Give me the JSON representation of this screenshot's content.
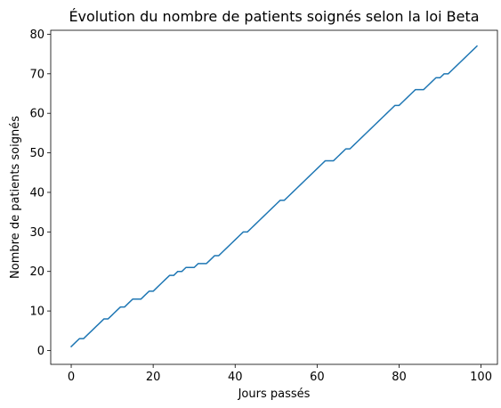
{
  "chart_data": {
    "type": "line",
    "title": "Évolution du nombre de patients soignés selon la loi Beta",
    "xlabel": "Jours passés",
    "ylabel": "Nombre de patients soignés",
    "xlim": [
      -5,
      104
    ],
    "ylim": [
      -3.5,
      81
    ],
    "xticks": [
      0,
      20,
      40,
      60,
      80,
      100
    ],
    "yticks": [
      0,
      10,
      20,
      30,
      40,
      50,
      60,
      70,
      80
    ],
    "grid": false,
    "series": [
      {
        "color": "#1f77b4",
        "x": [
          0,
          1,
          2,
          3,
          4,
          5,
          6,
          7,
          8,
          9,
          10,
          11,
          12,
          13,
          14,
          15,
          16,
          17,
          18,
          19,
          20,
          21,
          22,
          23,
          24,
          25,
          26,
          27,
          28,
          29,
          30,
          31,
          32,
          33,
          34,
          35,
          36,
          37,
          38,
          39,
          40,
          41,
          42,
          43,
          44,
          45,
          46,
          47,
          48,
          49,
          50,
          51,
          52,
          53,
          54,
          55,
          56,
          57,
          58,
          59,
          60,
          61,
          62,
          63,
          64,
          65,
          66,
          67,
          68,
          69,
          70,
          71,
          72,
          73,
          74,
          75,
          76,
          77,
          78,
          79,
          80,
          81,
          82,
          83,
          84,
          85,
          86,
          87,
          88,
          89,
          90,
          91,
          92,
          93,
          94,
          95,
          96,
          97,
          98,
          99
        ],
        "y": [
          1,
          2,
          3,
          3,
          4,
          5,
          6,
          7,
          8,
          8,
          9,
          10,
          11,
          11,
          12,
          13,
          13,
          13,
          14,
          15,
          15,
          16,
          17,
          18,
          19,
          19,
          20,
          20,
          21,
          21,
          21,
          22,
          22,
          22,
          23,
          24,
          24,
          25,
          26,
          27,
          28,
          29,
          30,
          30,
          31,
          32,
          33,
          34,
          35,
          36,
          37,
          38,
          38,
          39,
          40,
          41,
          42,
          43,
          44,
          45,
          46,
          47,
          48,
          48,
          48,
          49,
          50,
          51,
          51,
          52,
          53,
          54,
          55,
          56,
          57,
          58,
          59,
          60,
          61,
          62,
          62,
          63,
          64,
          65,
          66,
          66,
          66,
          67,
          68,
          69,
          69,
          70,
          70,
          71,
          72,
          73,
          74,
          75,
          76,
          77
        ]
      }
    ]
  }
}
